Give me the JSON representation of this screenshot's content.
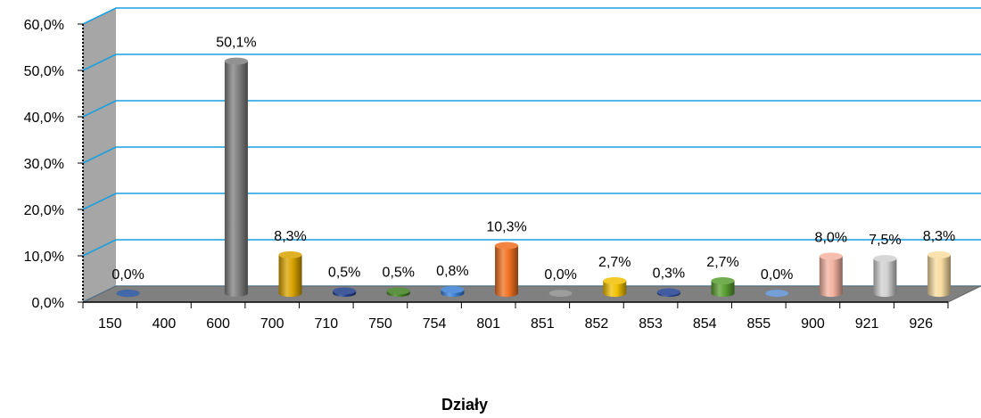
{
  "chart_data": {
    "type": "bar",
    "categories": [
      "150",
      "400",
      "600",
      "700",
      "710",
      "750",
      "754",
      "801",
      "851",
      "852",
      "853",
      "854",
      "855",
      "900",
      "921",
      "926"
    ],
    "series": [
      {
        "values": [
          0.0,
          null,
          50.1,
          8.3,
          0.5,
          0.5,
          0.8,
          10.3,
          0.0,
          2.7,
          0.3,
          2.7,
          0.0,
          8.0,
          7.5,
          8.3
        ],
        "labels": [
          "0,0%",
          "",
          "50,1%",
          "8,3%",
          "0,5%",
          "0,5%",
          "0,8%",
          "10,3%",
          "0,0%",
          "2,7%",
          "0,3%",
          "2,7%",
          "0,0%",
          "8,0%",
          "7,5%",
          "8,3%"
        ],
        "colors": [
          "#1f4e9a",
          "#1f4e9a",
          "#7f7f7f",
          "#d9a300",
          "#1f3d8a",
          "#3f7f1f",
          "#3a7fd5",
          "#f07020",
          "#8c8c8c",
          "#f0c000",
          "#203f90",
          "#5a9e32",
          "#5b8fd0",
          "#f3b3a0",
          "#d0d0d0",
          "#f8dca0"
        ]
      }
    ],
    "y_ticks": [
      "0,0%",
      "10,0%",
      "20,0%",
      "30,0%",
      "40,0%",
      "50,0%",
      "60,0%"
    ],
    "ylim": [
      0,
      60
    ],
    "xlabel": "Działy",
    "ylabel": "",
    "grid": true,
    "grid_color": "#1aa0e0",
    "wall_color": "#a6a6a6",
    "floor_color": "#808080"
  }
}
